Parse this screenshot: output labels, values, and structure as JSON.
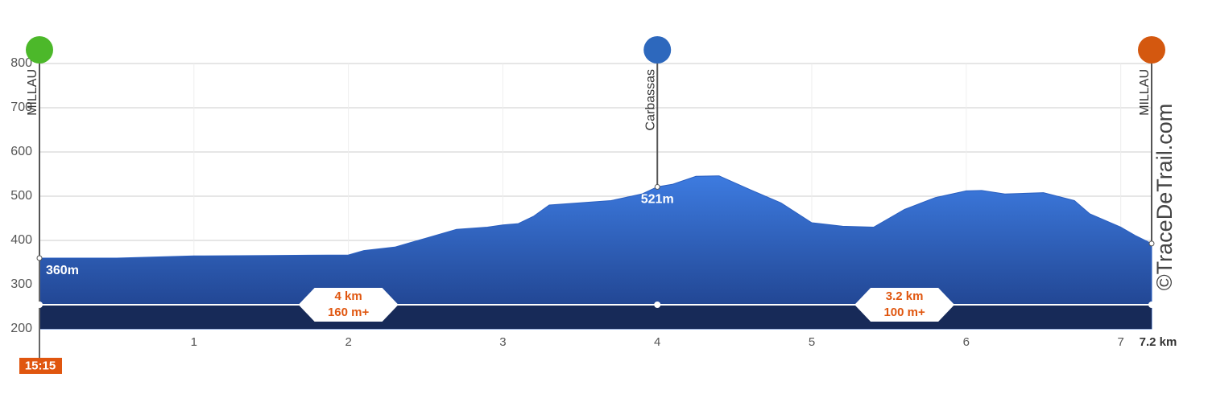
{
  "chart_data": {
    "type": "elevation-profile",
    "x": [
      0,
      0.5,
      1,
      1.5,
      2,
      2.1,
      2.3,
      2.5,
      2.7,
      2.9,
      3,
      3.1,
      3.2,
      3.3,
      3.5,
      3.7,
      3.9,
      4,
      4.1,
      4.25,
      4.4,
      4.6,
      4.8,
      5,
      5.2,
      5.4,
      5.5,
      5.6,
      5.8,
      6,
      6.1,
      6.25,
      6.5,
      6.7,
      6.8,
      7,
      7.1,
      7.2
    ],
    "values": [
      360,
      360,
      365,
      366,
      367,
      377,
      385,
      405,
      425,
      430,
      435,
      438,
      455,
      480,
      485,
      490,
      505,
      521,
      527,
      545,
      546,
      515,
      485,
      440,
      432,
      430,
      450,
      470,
      497,
      512,
      513,
      505,
      508,
      490,
      460,
      430,
      410,
      393
    ],
    "xlim": [
      0,
      7.2
    ],
    "xticks": [
      1,
      2,
      3,
      4,
      5,
      6,
      7,
      {
        "value": 7.2,
        "label": "7.2 km"
      }
    ],
    "ylim": [
      200,
      800
    ],
    "yticks": [
      200,
      300,
      400,
      500,
      600,
      700,
      800
    ],
    "grid": true,
    "waypoints": [
      {
        "name": "MILLAU",
        "x": 0,
        "elevation": 360,
        "value_label": "360m",
        "color": "#4cb82a"
      },
      {
        "name": "Carbassas",
        "x": 4,
        "elevation": 521,
        "value_label": "521m",
        "color": "#2d68bd"
      },
      {
        "name": "MILLAU",
        "x": 7.2,
        "elevation": 393,
        "color": "#d4580f"
      }
    ],
    "sections": [
      {
        "distance": "4 km",
        "gain": "160 m+"
      },
      {
        "distance": "3.2 km",
        "gain": "100 m+"
      }
    ],
    "start_time": "15:15",
    "watermark": "©TraceDeTrail.com"
  }
}
